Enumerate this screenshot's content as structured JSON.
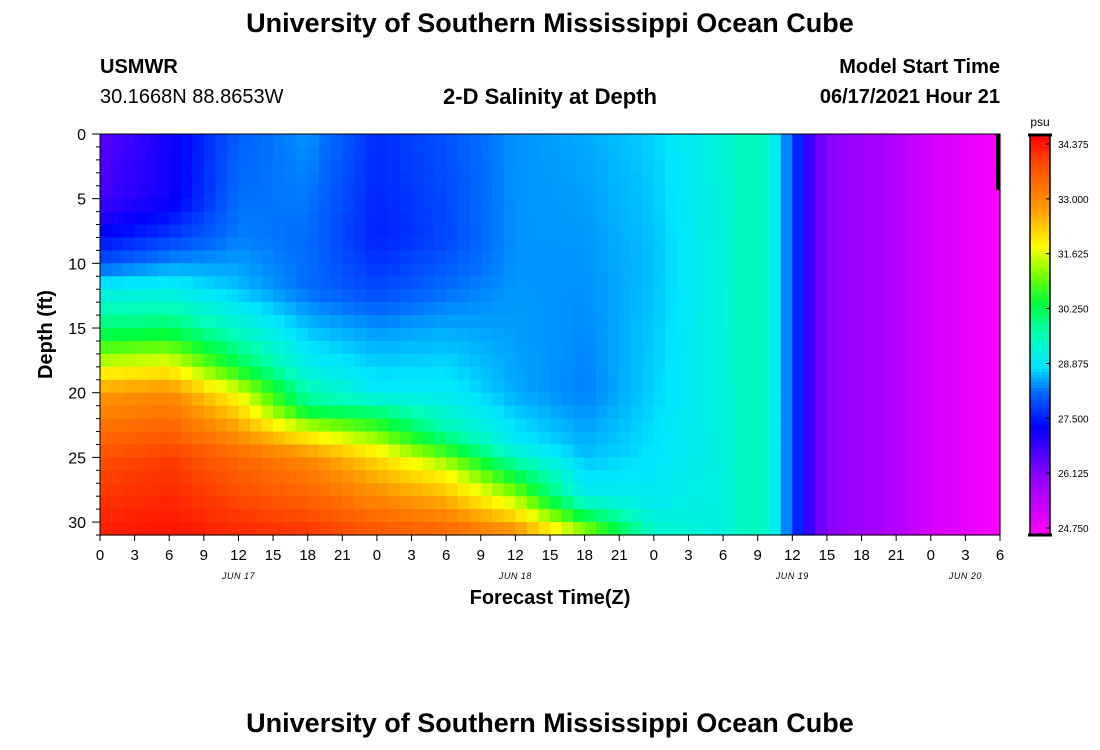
{
  "header": {
    "title": "University of Southern Mississippi Ocean Cube",
    "station": "USMWR",
    "coordinates": "30.1668N  88.8653W",
    "plot_title": "2-D Salinity at Depth",
    "start_label": "Model Start Time",
    "start_value": "06/17/2021 Hour 21"
  },
  "footer": {
    "title": "University of Southern Mississippi Ocean Cube"
  },
  "chart_data": {
    "type": "heatmap",
    "title": "2-D Salinity at Depth",
    "xlabel": "Forecast Time(Z)",
    "ylabel": "Depth (ft)",
    "x_range_hours": [
      0,
      78
    ],
    "x_tick_labels": [
      "0",
      "3",
      "6",
      "9",
      "12",
      "15",
      "18",
      "21",
      "0",
      "3",
      "6",
      "9",
      "12",
      "15",
      "18",
      "21",
      "0",
      "3",
      "6",
      "9",
      "12",
      "15",
      "18",
      "21",
      "0",
      "3",
      "6"
    ],
    "date_labels": [
      {
        "hour": 12,
        "label": "JUN 17"
      },
      {
        "hour": 36,
        "label": "JUN 18"
      },
      {
        "hour": 60,
        "label": "JUN 19"
      },
      {
        "hour": 75,
        "label": "JUN 20"
      }
    ],
    "y_range_ft": [
      0,
      31
    ],
    "y_ticks": [
      0,
      5,
      10,
      15,
      20,
      25,
      30
    ],
    "y_reversed": true,
    "colorbar": {
      "unit": "psu",
      "min": 24.75,
      "max": 34.375,
      "tick_labels": [
        "34.375",
        "33.000",
        "31.625",
        "30.250",
        "28.875",
        "27.500",
        "26.125",
        "24.750"
      ]
    },
    "salinity_profiles": [
      {
        "hour": 0,
        "depth_ft": [
          0,
          5,
          8,
          10,
          12,
          15,
          17,
          20,
          25,
          31
        ],
        "psu": [
          26.6,
          26.8,
          27.4,
          28.0,
          29.0,
          30.0,
          31.0,
          32.6,
          33.6,
          34.1
        ]
      },
      {
        "hour": 6,
        "depth_ft": [
          0,
          5,
          8,
          10,
          12,
          15,
          17,
          20,
          25,
          31
        ],
        "psu": [
          27.2,
          27.2,
          27.8,
          28.4,
          29.0,
          30.1,
          31.2,
          32.8,
          33.8,
          34.2
        ]
      },
      {
        "hour": 12,
        "depth_ft": [
          0,
          8,
          12,
          15,
          18,
          20,
          25,
          31
        ],
        "psu": [
          28.1,
          28.3,
          28.6,
          29.3,
          30.3,
          31.6,
          33.3,
          34.0
        ]
      },
      {
        "hour": 18,
        "depth_ft": [
          0,
          8,
          12,
          15,
          18,
          21,
          23,
          25,
          31
        ],
        "psu": [
          28.4,
          28.2,
          28.2,
          28.6,
          29.0,
          29.9,
          31.6,
          32.8,
          33.9
        ]
      },
      {
        "hour": 24,
        "depth_ft": [
          0,
          8,
          12,
          15,
          20,
          22,
          25,
          31
        ],
        "psu": [
          27.7,
          27.6,
          27.9,
          28.4,
          28.9,
          30.3,
          32.0,
          33.6
        ]
      },
      {
        "hour": 30,
        "depth_ft": [
          0,
          8,
          12,
          15,
          20,
          23,
          26,
          31
        ],
        "psu": [
          28.0,
          27.9,
          28.2,
          28.5,
          28.9,
          29.6,
          31.6,
          33.4
        ]
      },
      {
        "hour": 36,
        "depth_ft": [
          0,
          10,
          20,
          24,
          27,
          31
        ],
        "psu": [
          28.4,
          28.4,
          28.5,
          28.9,
          30.6,
          32.9
        ]
      },
      {
        "hour": 42,
        "depth_ft": [
          0,
          10,
          20,
          25,
          28,
          30,
          31
        ],
        "psu": [
          28.5,
          28.4,
          28.3,
          28.6,
          29.0,
          30.6,
          31.4
        ]
      },
      {
        "hour": 48,
        "depth_ft": [
          0,
          10,
          20,
          25,
          29,
          31
        ],
        "psu": [
          28.7,
          28.6,
          28.7,
          28.8,
          29.0,
          29.4
        ]
      },
      {
        "hour": 54,
        "depth_ft": [
          0,
          31
        ],
        "psu": [
          29.2,
          29.1
        ]
      },
      {
        "hour": 56,
        "depth_ft": [
          0,
          31
        ],
        "psu": [
          29.5,
          29.5
        ]
      },
      {
        "hour": 58,
        "depth_ft": [
          0,
          31
        ],
        "psu": [
          29.3,
          29.3
        ]
      },
      {
        "hour": 60,
        "depth_ft": [
          0,
          31
        ],
        "psu": [
          28.0,
          28.0
        ]
      },
      {
        "hour": 61,
        "depth_ft": [
          0,
          31
        ],
        "psu": [
          27.3,
          27.3
        ]
      },
      {
        "hour": 62,
        "depth_ft": [
          0,
          31
        ],
        "psu": [
          26.5,
          26.5
        ]
      },
      {
        "hour": 64,
        "depth_ft": [
          0,
          31
        ],
        "psu": [
          26.1,
          26.1
        ]
      },
      {
        "hour": 68,
        "depth_ft": [
          0,
          31
        ],
        "psu": [
          25.8,
          25.8
        ]
      },
      {
        "hour": 72,
        "depth_ft": [
          0,
          31
        ],
        "psu": [
          25.3,
          25.3
        ]
      },
      {
        "hour": 78,
        "depth_ft": [
          0,
          31
        ],
        "psu": [
          24.8,
          24.8
        ]
      }
    ]
  }
}
